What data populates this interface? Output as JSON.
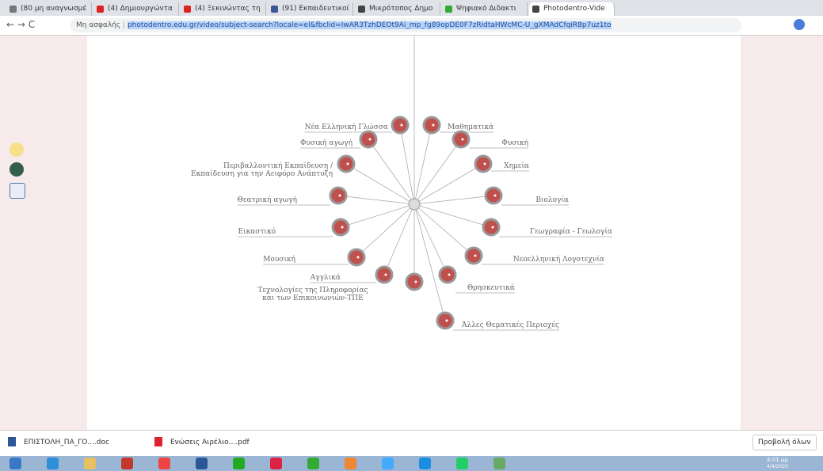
{
  "browser": {
    "tabs": [
      "(80 μη αναγνωσμέ",
      "(4) Δημιουργώντα",
      "(4) Ξεκινώντας τη",
      "(91) Εκπαιδευτικοί",
      "Μικρότοπος Δημο",
      "Ψηφιακό Διδακτι",
      "Photodentro-Vide"
    ],
    "security": "Μη ασφαλής",
    "url": "photodentro.edu.gr/video/subject-search?locale=el&fbclid=IwAR3TzhDEOt9Ai_mp_fg89opDE0F7zRidtaHWcMC-U_gXMAdCfqiR8p7uz1to"
  },
  "diagram": {
    "nodes": [
      {
        "lines": [
          "Νέα Ελληνική Γλώσσα"
        ]
      },
      {
        "lines": [
          "Μαθηματικά"
        ]
      },
      {
        "lines": [
          "Φυσική αγωγή"
        ]
      },
      {
        "lines": [
          "Φυσική"
        ]
      },
      {
        "lines": [
          "Περιβαλλοντική Εκπαίδευση /",
          "Εκπαίδευση για την Αειφόρο Ανάπτυξη"
        ]
      },
      {
        "lines": [
          "Χημεία"
        ]
      },
      {
        "lines": [
          "Θεατρική αγωγή"
        ]
      },
      {
        "lines": [
          "Βιολογία"
        ]
      },
      {
        "lines": [
          "Εικαστικό"
        ]
      },
      {
        "lines": [
          "Γεωγραφία - Γεωλογία"
        ]
      },
      {
        "lines": [
          "Μουσική"
        ]
      },
      {
        "lines": [
          "Νεοελληνική Λογοτεχνία"
        ]
      },
      {
        "lines": [
          "Αγγλικά"
        ]
      },
      {
        "lines": [
          "Τεχνολογίες της Πληροφορίας",
          "και των Επικοινωνιών-ΤΠΕ"
        ]
      },
      {
        "lines": [
          "Θρησκευτικά"
        ]
      },
      {
        "lines": [
          "Άλλες Θεματικές Περιοχές"
        ]
      }
    ]
  },
  "downloads": {
    "files": [
      "ΕΠΙΣΤΟΛΗ_ΠΑ_ΓΟ....doc",
      "Ενώσεις Αιρέλιο....pdf"
    ],
    "show_all": "Προβολή όλων"
  },
  "taskbar": {
    "time": "4:01 μμ",
    "date": "4/4/2020"
  }
}
